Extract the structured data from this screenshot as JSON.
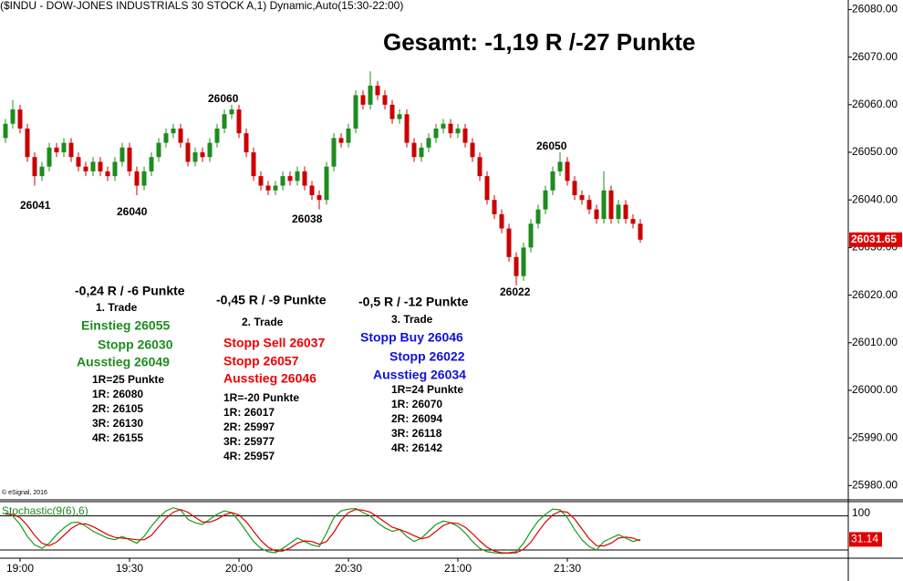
{
  "chart_data": [
    {
      "type": "candlestick",
      "title": "($INDU - DOW-JONES INDUSTRIALS 30 STOCK A,1) Dynamic,Auto(15:30-22:00)",
      "headline": "Gesamt: -1,19 R /-27 Punkte",
      "credit": "© eSignal, 2016",
      "x": [
        null,
        null,
        "19:00",
        null,
        null,
        null,
        null,
        null,
        null,
        null,
        null,
        null,
        null,
        null,
        null,
        null,
        null,
        "19:30",
        null,
        null,
        null,
        null,
        null,
        null,
        null,
        null,
        null,
        null,
        null,
        null,
        null,
        null,
        "20:00",
        null,
        null,
        null,
        null,
        null,
        null,
        null,
        null,
        null,
        null,
        null,
        null,
        null,
        null,
        "20:30",
        null,
        null,
        null,
        null,
        null,
        null,
        null,
        null,
        null,
        null,
        null,
        null,
        null,
        null,
        "21:00",
        null,
        null,
        null,
        null,
        null,
        null,
        null,
        null,
        null,
        null,
        null,
        null,
        null,
        null,
        "21:30",
        null,
        null,
        null,
        null,
        null,
        null,
        null,
        null,
        null,
        null
      ],
      "open": [
        26053,
        26056,
        26059,
        26055,
        26049,
        26045,
        26047,
        26051,
        26050,
        26052,
        26049,
        26047,
        26046,
        26048,
        26046,
        26045,
        26048,
        26051,
        26046,
        26043,
        26046,
        26049,
        26052,
        26054,
        26055,
        26052,
        26048,
        26050,
        26049,
        26052,
        26055,
        26058,
        26059,
        26054,
        26050,
        26045,
        26043,
        26042,
        26043,
        26045,
        26044,
        26046,
        26043,
        26041,
        26040,
        26047,
        26053,
        26052,
        26055,
        26062,
        26060,
        26064,
        26062,
        26060,
        26057,
        26058,
        26052,
        26049,
        26051,
        26053,
        26055,
        26056,
        26054,
        26055,
        26052,
        26049,
        26045,
        26040,
        26037,
        26034,
        26028,
        26024,
        26030,
        26035,
        26038,
        26042,
        26046,
        26048,
        26044,
        26041,
        26040,
        26038,
        26036,
        26042,
        26036,
        26039,
        26036,
        26035
      ],
      "high": [
        26057,
        26061,
        26060,
        26056,
        26050,
        26048,
        26052,
        26052,
        26053,
        26053,
        26050,
        26048,
        26049,
        26049,
        26047,
        26049,
        26052,
        26052,
        26047,
        26047,
        26050,
        26053,
        26055,
        26056,
        26056,
        26053,
        26051,
        26051,
        26053,
        26056,
        26059,
        26060,
        26060,
        26055,
        26051,
        26046,
        26044,
        26044,
        26046,
        26046,
        26047,
        26047,
        26044,
        26042,
        26048,
        26054,
        26054,
        26056,
        26063,
        26063,
        26067,
        26065,
        26063,
        26061,
        26059,
        26059,
        26053,
        26052,
        26054,
        26056,
        26057,
        26057,
        26056,
        26056,
        26053,
        26050,
        26046,
        26041,
        26038,
        26035,
        26029,
        26031,
        26036,
        26039,
        26043,
        26047,
        26050,
        26049,
        26045,
        26042,
        26041,
        26039,
        26046,
        26043,
        26040,
        26040,
        26037,
        26036
      ],
      "low": [
        26052,
        26055,
        26054,
        26048,
        26043,
        26044,
        26046,
        26049,
        26049,
        26048,
        26046,
        26045,
        26045,
        26045,
        26044,
        26044,
        26047,
        26045,
        26041,
        26042,
        26045,
        26048,
        26051,
        26053,
        26051,
        26047,
        26047,
        26048,
        26048,
        26051,
        26054,
        26057,
        26053,
        26049,
        26044,
        26042,
        26041,
        26041,
        26042,
        26043,
        26043,
        26042,
        26040,
        26038,
        26039,
        26046,
        26051,
        26051,
        26054,
        26059,
        26059,
        26061,
        26059,
        26056,
        26056,
        26051,
        26048,
        26048,
        26050,
        26052,
        26054,
        26053,
        26053,
        26051,
        26048,
        26044,
        26039,
        26036,
        26033,
        26027,
        26022,
        26023,
        26029,
        26034,
        26037,
        26041,
        26045,
        26043,
        26040,
        26039,
        26037,
        26035,
        26035,
        26035,
        26035,
        26035,
        26034,
        26031
      ],
      "close": [
        26056,
        26059,
        26055,
        26049,
        26045,
        26047,
        26051,
        26050,
        26052,
        26049,
        26047,
        26046,
        26048,
        26046,
        26045,
        26048,
        26051,
        26046,
        26043,
        26046,
        26049,
        26052,
        26054,
        26055,
        26052,
        26048,
        26050,
        26049,
        26052,
        26055,
        26058,
        26059,
        26054,
        26050,
        26045,
        26043,
        26042,
        26043,
        26045,
        26044,
        26046,
        26043,
        26041,
        26040,
        26047,
        26053,
        26052,
        26055,
        26062,
        26060,
        26064,
        26062,
        26060,
        26057,
        26058,
        26052,
        26049,
        26051,
        26053,
        26055,
        26056,
        26054,
        26055,
        26052,
        26049,
        26045,
        26040,
        26037,
        26034,
        26028,
        26024,
        26030,
        26035,
        26038,
        26042,
        26046,
        26048,
        26044,
        26041,
        26040,
        26038,
        26036,
        26042,
        26036,
        26039,
        26036,
        26035,
        26031.65
      ],
      "up_color": "#1e8c1e",
      "down_color": "#cc0000",
      "ylim": [
        25977,
        26082
      ],
      "yticks": [
        {
          "value": 26080,
          "label": "26080.00"
        },
        {
          "value": 26070,
          "label": "26070.00"
        },
        {
          "value": 26060,
          "label": "26060.00"
        },
        {
          "value": 26050,
          "label": "26050.00"
        },
        {
          "value": 26040,
          "label": "26040.00"
        },
        {
          "value": 26030,
          "label": "26030.00"
        },
        {
          "value": 26020,
          "label": "26020.00"
        },
        {
          "value": 26010,
          "label": "26010.00"
        },
        {
          "value": 26000,
          "label": "26000.00"
        },
        {
          "value": 25990,
          "label": "25990.00"
        },
        {
          "value": 25980,
          "label": "25980.00"
        }
      ],
      "price_labels": [
        "26041",
        "26040",
        "26060",
        "26038",
        "26022",
        "26050"
      ],
      "trades": [
        [
          {
            "text": "-0,24 R / -6 Punkte",
            "color": "#000000"
          },
          {
            "text": "1. Trade",
            "color": "#000000"
          },
          {
            "text": "Einstieg 26055",
            "color": "#1e8c1e"
          },
          {
            "text": "Stopp 26030",
            "color": "#1e8c1e"
          },
          {
            "text": "Ausstieg 26049",
            "color": "#1e8c1e"
          },
          {
            "text": "1R=25 Punkte",
            "color": "#000000"
          },
          {
            "text": "1R: 26080",
            "color": "#000000"
          },
          {
            "text": "2R: 26105",
            "color": "#000000"
          },
          {
            "text": "3R: 26130",
            "color": "#000000"
          },
          {
            "text": "4R: 26155",
            "color": "#000000"
          }
        ],
        [
          {
            "text": "-0,45 R / -9 Punkte",
            "color": "#000000"
          },
          {
            "text": "2. Trade",
            "color": "#000000"
          },
          {
            "text": "Stopp Sell 26037",
            "color": "#ee0000"
          },
          {
            "text": "Stopp 26057",
            "color": "#ee0000"
          },
          {
            "text": "Ausstieg 26046",
            "color": "#ee0000"
          },
          {
            "text": "1R=-20 Punkte",
            "color": "#000000"
          },
          {
            "text": "1R: 26017",
            "color": "#000000"
          },
          {
            "text": "2R: 25997",
            "color": "#000000"
          },
          {
            "text": "3R: 25977",
            "color": "#000000"
          },
          {
            "text": "4R: 25957",
            "color": "#000000"
          }
        ],
        [
          {
            "text": "-0,5 R / -12 Punkte",
            "color": "#000000"
          },
          {
            "text": "3. Trade",
            "color": "#000000"
          },
          {
            "text": "Stopp Buy 26046",
            "color": "#1010dd"
          },
          {
            "text": "Stopp 26022",
            "color": "#1010dd"
          },
          {
            "text": "Ausstieg 26034",
            "color": "#1010dd"
          },
          {
            "text": "1R=24 Punkte",
            "color": "#000000"
          },
          {
            "text": "1R: 26070",
            "color": "#000000"
          },
          {
            "text": "2R: 26094",
            "color": "#000000"
          },
          {
            "text": "3R: 26118",
            "color": "#000000"
          },
          {
            "text": "4R: 26142",
            "color": "#000000"
          }
        ]
      ]
    },
    {
      "type": "line",
      "title": "Stochastic(9(6),6)",
      "title_color": "#1e8c1e",
      "series": [
        {
          "color": "#1a9a1a",
          "values": [
            110,
            100,
            75,
            40,
            15,
            5,
            20,
            45,
            65,
            80,
            82,
            70,
            55,
            45,
            35,
            30,
            40,
            30,
            20,
            40,
            70,
            95,
            115,
            124,
            118,
            90,
            80,
            75,
            90,
            105,
            115,
            110,
            85,
            55,
            25,
            5,
            -5,
            -8,
            5,
            20,
            35,
            25,
            15,
            10,
            50,
            95,
            115,
            120,
            122,
            110,
            100,
            80,
            65,
            55,
            60,
            40,
            25,
            35,
            55,
            75,
            85,
            80,
            70,
            50,
            25,
            5,
            -5,
            -8,
            -10,
            -8,
            -5,
            20,
            55,
            85,
            105,
            120,
            118,
            95,
            60,
            30,
            10,
            0,
            25,
            35,
            45,
            35,
            25,
            31.14
          ]
        },
        {
          "color": "#e00000",
          "values": [
            105,
            105,
            95,
            72,
            43,
            20,
            13,
            23,
            43,
            63,
            76,
            77,
            69,
            57,
            45,
            37,
            35,
            33,
            30,
            30,
            43,
            68,
            93,
            111,
            119,
            111,
            96,
            82,
            82,
            90,
            103,
            110,
            103,
            83,
            55,
            28,
            8,
            -3,
            -3,
            6,
            20,
            27,
            25,
            17,
            25,
            52,
            87,
            110,
            119,
            117,
            111,
            97,
            82,
            67,
            60,
            52,
            42,
            33,
            38,
            55,
            72,
            80,
            78,
            67,
            48,
            27,
            8,
            -3,
            -8,
            -9,
            -8,
            2,
            23,
            53,
            82,
            103,
            114,
            111,
            91,
            62,
            33,
            13,
            12,
            20,
            35,
            38,
            35,
            27
          ]
        }
      ],
      "ylim": [
        -24,
        142
      ],
      "yticks": [
        100
      ],
      "levels": [
        100,
        0
      ]
    }
  ]
}
